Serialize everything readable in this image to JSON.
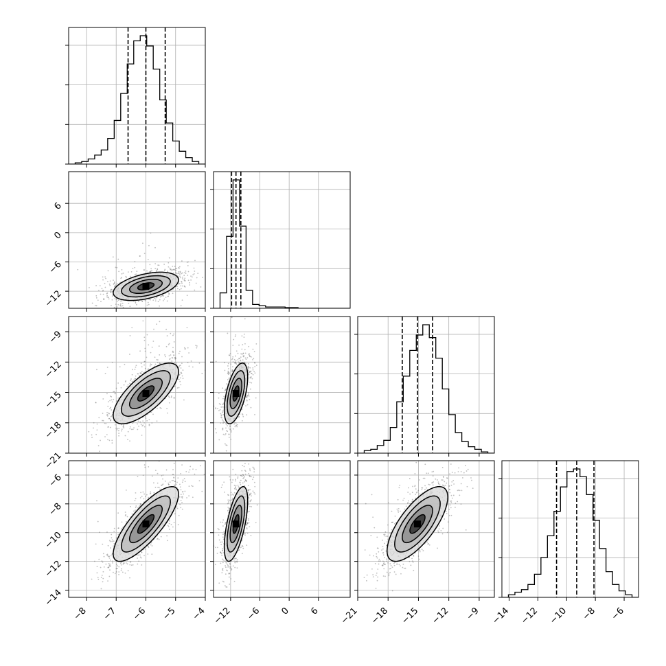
{
  "chart_data": {
    "type": "corner",
    "title": "",
    "parameters": [
      "",
      "",
      "",
      ""
    ],
    "ranges": [
      [
        -8.6,
        -4
      ],
      [
        -15.5,
        12.5
      ],
      [
        -21,
        -7.5
      ],
      [
        -14.5,
        -5
      ]
    ],
    "ticks": [
      [
        -8,
        -7,
        -6,
        -5,
        -4
      ],
      [
        -12,
        -6,
        0,
        6
      ],
      [
        -21,
        -18,
        -15,
        -12,
        -9
      ],
      [
        -14,
        -12,
        -10,
        -8,
        -6
      ]
    ],
    "tick_labels": [
      [
        "−8",
        "−7",
        "−6",
        "−5",
        "−4"
      ],
      [
        "−12",
        "−6",
        "0",
        "6"
      ],
      [
        "−21",
        "−18",
        "−15",
        "−12",
        "−9"
      ],
      [
        "−14",
        "−12",
        "−10",
        "−8",
        "−6"
      ]
    ],
    "diag_ticks": [
      4,
      4,
      4,
      4
    ],
    "quantiles": [
      [
        -6.6,
        -6.0,
        -5.35
      ],
      [
        -11.8,
        -10.9,
        -9.9
      ],
      [
        -16.6,
        -15.1,
        -13.6
      ],
      [
        -10.7,
        -9.3,
        -8.1
      ]
    ],
    "histograms": [
      [
        0,
        0.01,
        0.02,
        0.04,
        0.07,
        0.11,
        0.2,
        0.34,
        0.55,
        0.78,
        0.96,
        1.0,
        0.92,
        0.74,
        0.5,
        0.32,
        0.18,
        0.1,
        0.05,
        0.02,
        0
      ],
      [
        0,
        0.12,
        0.56,
        1.0,
        0.64,
        0.14,
        0.03,
        0.02,
        0.01,
        0.01,
        0.01,
        0.005,
        0.005,
        0,
        0,
        0,
        0,
        0,
        0,
        0,
        0
      ],
      [
        0,
        0.02,
        0.03,
        0.06,
        0.1,
        0.2,
        0.4,
        0.6,
        0.8,
        0.92,
        1.0,
        0.9,
        0.74,
        0.5,
        0.3,
        0.16,
        0.09,
        0.05,
        0.03,
        0.01,
        0
      ],
      [
        0,
        0.02,
        0.04,
        0.06,
        0.1,
        0.18,
        0.31,
        0.48,
        0.67,
        0.86,
        0.98,
        1.0,
        0.94,
        0.8,
        0.6,
        0.38,
        0.2,
        0.1,
        0.05,
        0.02,
        0
      ]
    ],
    "correlations": [
      {
        "pair": [
          0,
          1
        ],
        "mean": [
          -6.0,
          -11.0
        ],
        "sd": [
          0.55,
          1.45
        ],
        "rho": 0.45
      },
      {
        "pair": [
          0,
          2
        ],
        "mean": [
          -6.0,
          -15.1
        ],
        "sd": [
          0.55,
          1.5
        ],
        "rho": 0.72
      },
      {
        "pair": [
          1,
          2
        ],
        "mean": [
          -10.9,
          -15.1
        ],
        "sd": [
          1.2,
          1.5
        ],
        "rho": 0.55
      },
      {
        "pair": [
          0,
          3
        ],
        "mean": [
          -6.0,
          -9.4
        ],
        "sd": [
          0.55,
          1.3
        ],
        "rho": 0.8
      },
      {
        "pair": [
          1,
          3
        ],
        "mean": [
          -10.9,
          -9.4
        ],
        "sd": [
          1.2,
          1.3
        ],
        "rho": 0.62
      },
      {
        "pair": [
          2,
          3
        ],
        "mean": [
          -15.1,
          -9.4
        ],
        "sd": [
          1.5,
          1.3
        ],
        "rho": 0.72
      }
    ],
    "contour_levels_sigma": [
      0.5,
      1.0,
      1.5,
      2.0
    ],
    "grid": true,
    "colors": {
      "ink": "#000000",
      "grid": "#b0b0b0",
      "points": "#6e6e6e",
      "shade_dark": "#000000",
      "shade_mid": "#8c8c8c",
      "shade_light": "#d8d8d8"
    }
  }
}
